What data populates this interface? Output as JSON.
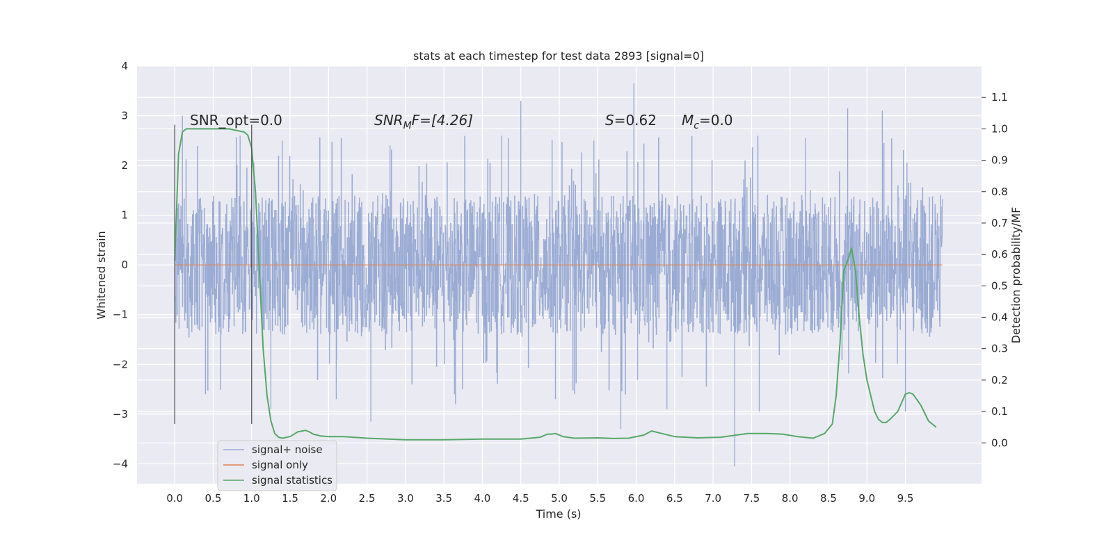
{
  "chart_data": {
    "type": "line",
    "title": "stats at each timestep for test data 2893 [signal=0]",
    "xlabel": "Time (s)",
    "ylabel": "Whitened strain",
    "y2label": "Detection probability/MF",
    "xlim": [
      -0.49,
      10.49
    ],
    "ylim": [
      -4.4,
      4.0
    ],
    "y2lim": [
      -0.13,
      1.2
    ],
    "xticks": [
      "0.0",
      "0.5",
      "1.0",
      "1.5",
      "2.0",
      "2.5",
      "3.0",
      "3.5",
      "4.0",
      "4.5",
      "5.0",
      "5.5",
      "6.0",
      "6.5",
      "7.0",
      "7.5",
      "8.0",
      "8.5",
      "9.0",
      "9.5"
    ],
    "yticks": [
      "4",
      "3",
      "2",
      "1",
      "0",
      "−1",
      "−2",
      "−3",
      "−4"
    ],
    "y2ticks": [
      "0.0",
      "0.1",
      "0.2",
      "0.3",
      "0.4",
      "0.5",
      "0.6",
      "0.7",
      "0.8",
      "0.9",
      "1.0",
      "1.1"
    ],
    "grid": true,
    "legend_position": "lower-left",
    "legend": [
      "signal+ noise",
      "signal only",
      "signal statistics"
    ],
    "colors": {
      "background": "#eaeaf2",
      "grid": "#ffffff",
      "noise": "#97a9d2",
      "signal_only": "#dd8452",
      "statistics": "#55a868",
      "window_lines": "#555555"
    },
    "annotations": [
      {
        "text": "SNR_opt=0.0"
      },
      {
        "text_main": "SNR",
        "text_sub": "M",
        "text_rest": "F=[4.26]",
        "italic": true
      },
      {
        "text_main": "S",
        "text_rest": "=0.62",
        "italic": true
      },
      {
        "text_main": "M",
        "text_sub": "c",
        "text_rest": "=0.0",
        "italic": true
      }
    ],
    "window_lines_x": [
      0.0,
      1.0
    ],
    "window_lines_y": [
      -3.2,
      2.82
    ],
    "noise": {
      "x_range": [
        0.0,
        9.98
      ],
      "envelope_typical": [
        -1.4,
        1.4
      ],
      "max": 3.65,
      "min": -4.05,
      "spikes": [
        {
          "x": 0.1,
          "y": 3.0
        },
        {
          "x": 0.4,
          "y": -2.6
        },
        {
          "x": 0.85,
          "y": 2.6
        },
        {
          "x": 1.25,
          "y": -2.9
        },
        {
          "x": 1.4,
          "y": 2.5
        },
        {
          "x": 2.1,
          "y": -2.7
        },
        {
          "x": 2.55,
          "y": -3.15
        },
        {
          "x": 2.8,
          "y": 2.4
        },
        {
          "x": 3.65,
          "y": -2.8
        },
        {
          "x": 4.25,
          "y": 2.6
        },
        {
          "x": 4.5,
          "y": 3.3
        },
        {
          "x": 4.95,
          "y": -2.7
        },
        {
          "x": 5.45,
          "y": 2.5
        },
        {
          "x": 5.8,
          "y": -3.3
        },
        {
          "x": 5.97,
          "y": 3.65
        },
        {
          "x": 6.4,
          "y": -2.9
        },
        {
          "x": 7.28,
          "y": -4.05
        },
        {
          "x": 7.6,
          "y": -2.95
        },
        {
          "x": 8.2,
          "y": 2.55
        },
        {
          "x": 8.75,
          "y": 3.15
        },
        {
          "x": 9.2,
          "y": 3.1
        },
        {
          "x": 9.5,
          "y": -2.95
        }
      ]
    },
    "signal_only": {
      "x": [
        0.0,
        9.98
      ],
      "y": [
        0.0,
        0.0
      ]
    },
    "statistics": {
      "x": [
        0.0,
        0.05,
        0.1,
        0.15,
        0.25,
        0.45,
        0.7,
        0.9,
        0.95,
        1.0,
        1.05,
        1.1,
        1.15,
        1.2,
        1.25,
        1.3,
        1.35,
        1.4,
        1.5,
        1.6,
        1.7,
        1.75,
        1.8,
        1.9,
        2.0,
        2.2,
        2.5,
        3.0,
        3.5,
        4.0,
        4.5,
        4.75,
        4.85,
        4.9,
        4.95,
        5.05,
        5.2,
        5.5,
        5.7,
        5.9,
        6.1,
        6.2,
        6.3,
        6.5,
        6.8,
        7.1,
        7.3,
        7.45,
        7.55,
        7.7,
        7.9,
        8.1,
        8.3,
        8.45,
        8.55,
        8.6,
        8.65,
        8.7,
        8.75,
        8.8,
        8.85,
        8.9,
        8.95,
        9.0,
        9.05,
        9.1,
        9.15,
        9.2,
        9.25,
        9.3,
        9.4,
        9.5,
        9.55,
        9.6,
        9.7,
        9.8,
        9.9
      ],
      "y": [
        0.58,
        0.92,
        0.99,
        1.0,
        1.0,
        1.0,
        1.0,
        0.99,
        0.98,
        0.94,
        0.8,
        0.55,
        0.3,
        0.15,
        0.07,
        0.03,
        0.018,
        0.015,
        0.02,
        0.035,
        0.04,
        0.035,
        0.028,
        0.022,
        0.02,
        0.02,
        0.015,
        0.01,
        0.01,
        0.012,
        0.012,
        0.018,
        0.028,
        0.028,
        0.03,
        0.02,
        0.015,
        0.016,
        0.014,
        0.015,
        0.025,
        0.038,
        0.032,
        0.02,
        0.016,
        0.018,
        0.025,
        0.03,
        0.03,
        0.03,
        0.028,
        0.02,
        0.015,
        0.03,
        0.06,
        0.15,
        0.32,
        0.55,
        0.58,
        0.62,
        0.55,
        0.4,
        0.28,
        0.2,
        0.15,
        0.1,
        0.075,
        0.065,
        0.065,
        0.075,
        0.1,
        0.155,
        0.16,
        0.155,
        0.12,
        0.07,
        0.05
      ]
    }
  }
}
